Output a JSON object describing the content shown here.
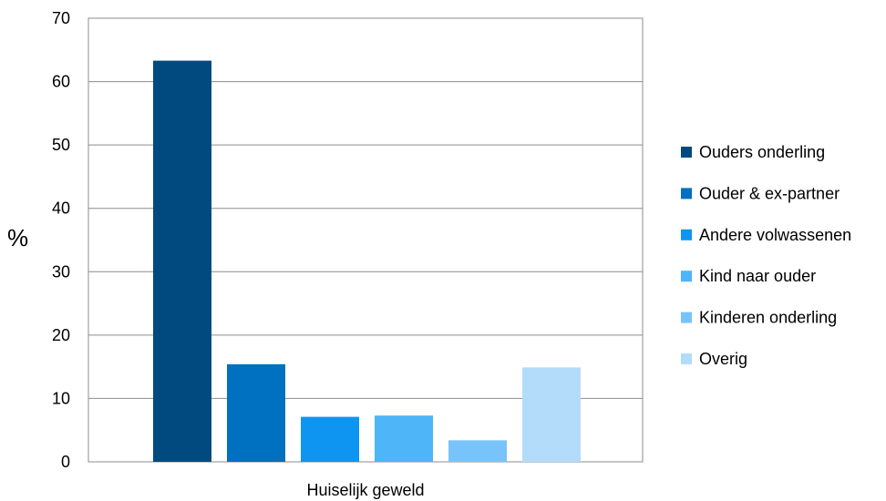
{
  "chart_data": {
    "type": "bar",
    "categories": [
      "Huiselijk geweld"
    ],
    "ylabel": "%",
    "xlabel": "",
    "ylim": [
      0,
      70
    ],
    "yticks": [
      0,
      10,
      20,
      30,
      40,
      50,
      60,
      70
    ],
    "grid": true,
    "legend_position": "right",
    "series": [
      {
        "name": "Ouders onderling",
        "values": [
          63.3
        ],
        "color": "#004a80"
      },
      {
        "name": "Ouder & ex-partner",
        "values": [
          15.4
        ],
        "color": "#0070c0"
      },
      {
        "name": "Andere volwassenen",
        "values": [
          7.1
        ],
        "color": "#0e95f2"
      },
      {
        "name": "Kind naar ouder",
        "values": [
          7.3
        ],
        "color": "#4db5f8"
      },
      {
        "name": "Kinderen onderling",
        "values": [
          3.4
        ],
        "color": "#78c4fa"
      },
      {
        "name": "Overig",
        "values": [
          14.9
        ],
        "color": "#b3dcfb"
      }
    ]
  }
}
